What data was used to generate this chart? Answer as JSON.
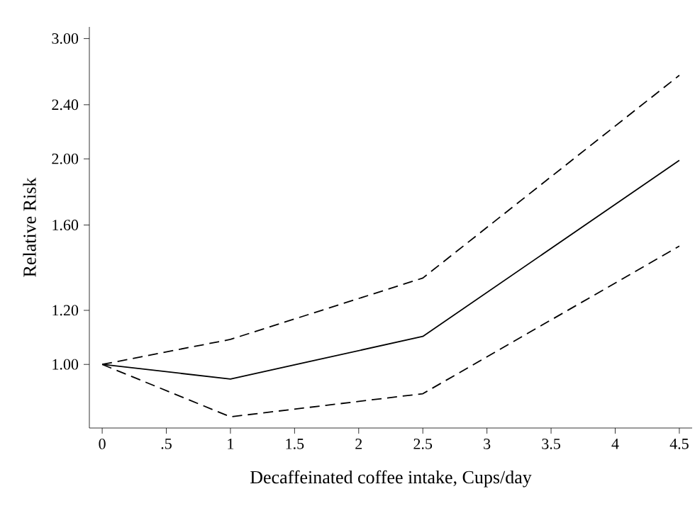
{
  "chart_data": {
    "type": "line",
    "xlabel": "Decaffeinated coffee intake, Cups/day",
    "ylabel": "Relative Risk",
    "log": "y",
    "x": [
      0,
      1,
      2.5,
      4.5
    ],
    "series": [
      {
        "color": "#000000",
        "line_style": "dashed",
        "values": [
          1.0,
          1.088,
          1.338,
          2.65
        ]
      },
      {
        "color": "#000000",
        "line_style": "solid",
        "values": [
          1.0,
          0.952,
          1.099,
          1.99
        ]
      },
      {
        "color": "#000000",
        "line_style": "dashed",
        "values": [
          1.0,
          0.838,
          0.906,
          1.49
        ]
      }
    ],
    "xlim": [
      -0.1,
      4.6
    ],
    "ylim": [
      0.807,
      3.12
    ],
    "xticks": [
      0,
      {
        "value": 0.5,
        "label": ".5"
      },
      1,
      1.5,
      2,
      2.5,
      3,
      3.5,
      4,
      4.5
    ],
    "yticks": [
      {
        "value": 1,
        "label": "1.00"
      },
      {
        "value": 1.2,
        "label": "1.20"
      },
      {
        "value": 1.6,
        "label": "1.60"
      },
      {
        "value": 2,
        "label": "2.00"
      },
      {
        "value": 2.4,
        "label": "2.40"
      },
      {
        "value": 3,
        "label": "3.00"
      }
    ],
    "grid": false,
    "marker": "none"
  }
}
